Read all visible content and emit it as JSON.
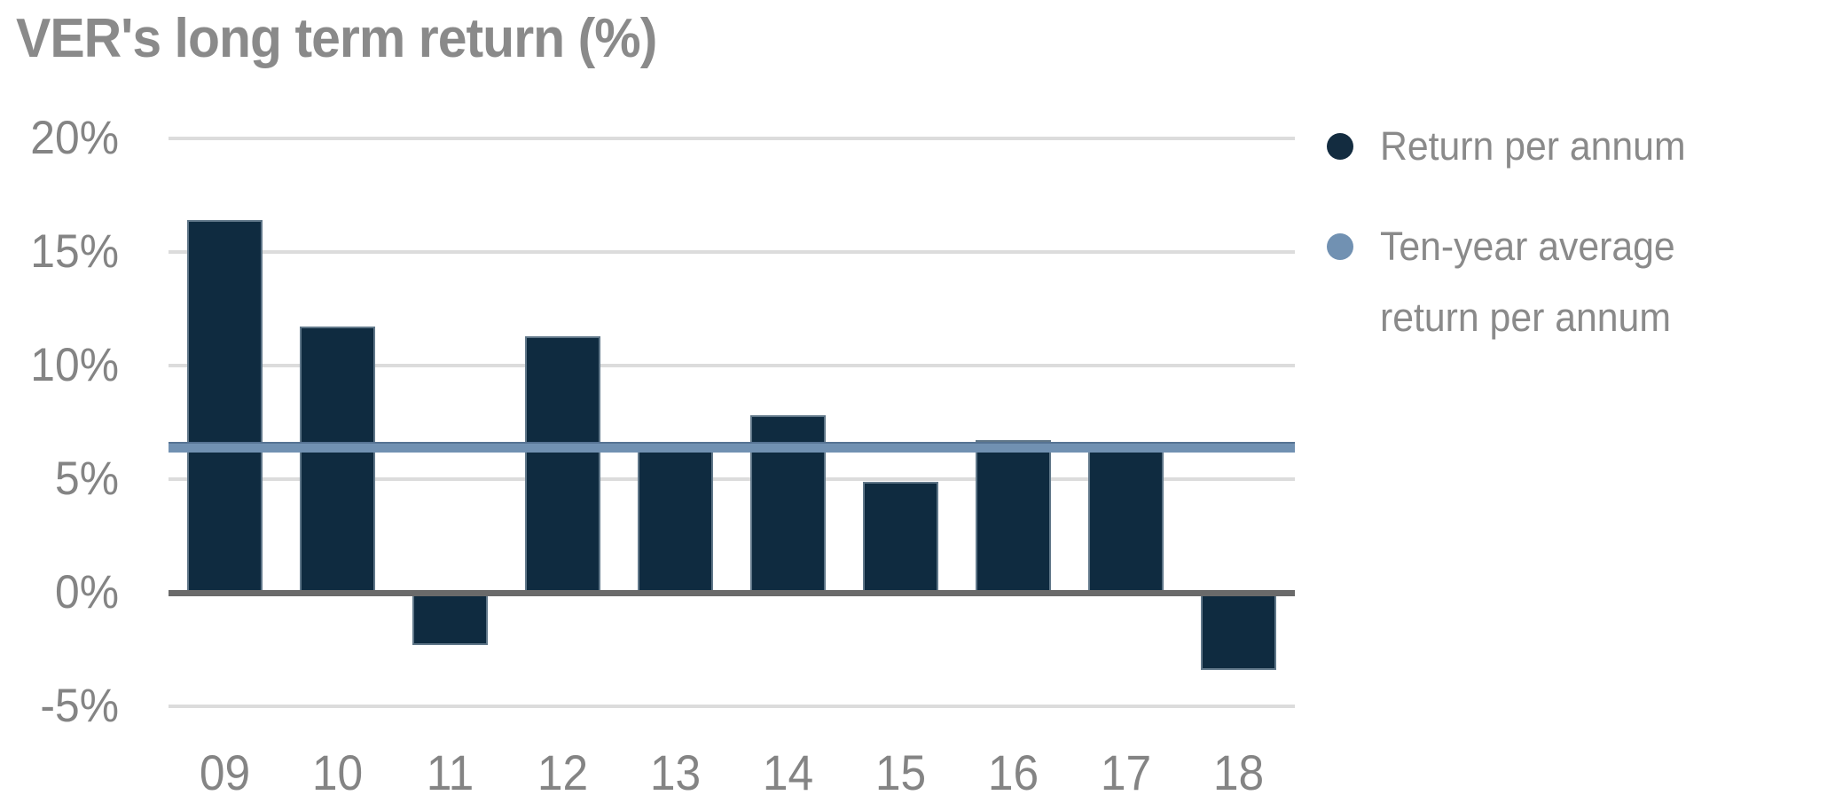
{
  "title": "VER's long term return (%)",
  "chart_data": {
    "type": "bar",
    "title": "VER's long term return (%)",
    "categories": [
      "09",
      "10",
      "11",
      "12",
      "13",
      "14",
      "15",
      "16",
      "17",
      "18"
    ],
    "series": [
      {
        "name": "Return per annum",
        "type": "bar",
        "color": "#0f2b40",
        "values": [
          16.4,
          11.7,
          -2.3,
          11.3,
          6.4,
          7.8,
          4.9,
          6.7,
          6.6,
          -3.4
        ]
      },
      {
        "name": "Ten-year average return per annum",
        "type": "line",
        "color": "#7191b2",
        "value": 6.4
      }
    ],
    "xlabel": "",
    "ylabel": "",
    "ylim": [
      -5,
      20
    ],
    "yticks": [
      {
        "value": 20,
        "label": "20%"
      },
      {
        "value": 15,
        "label": "15%"
      },
      {
        "value": 10,
        "label": "10%"
      },
      {
        "value": 5,
        "label": "5%"
      },
      {
        "value": 0,
        "label": "0%"
      },
      {
        "value": -5,
        "label": "-5%"
      }
    ],
    "grid": true,
    "legend_position": "right"
  },
  "legend": {
    "items": [
      {
        "label": "Return per annum",
        "color": "#132c40"
      },
      {
        "lines": [
          "Ten-year average",
          "return per annum"
        ],
        "color": "#7191b2"
      }
    ]
  },
  "colors": {
    "bar": "#0f2b40",
    "average_line": "#7191b2",
    "title_text": "#8a8a8a",
    "tick_text": "#848484",
    "gridline": "#dcdcdc",
    "zero_axis": "#6a6a6a",
    "background": "#ffffff"
  }
}
